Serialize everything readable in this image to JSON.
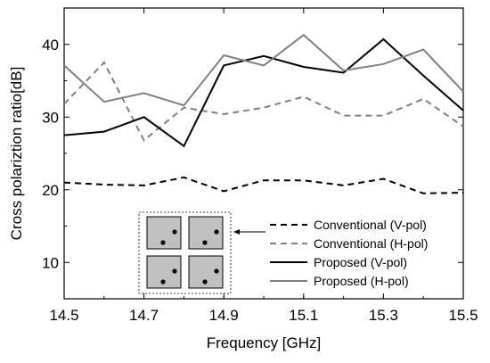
{
  "chart_data": {
    "type": "line",
    "xlabel": "Frequency [GHz]",
    "ylabel": "Cross polariztion ratio[dB]",
    "xlim": [
      14.5,
      15.5
    ],
    "ylim": [
      5,
      45
    ],
    "xticks": [
      14.5,
      14.7,
      14.9,
      15.1,
      15.3,
      15.5
    ],
    "yticks": [
      10,
      20,
      30,
      40
    ],
    "grid": false,
    "legend_position": "bottom-right",
    "x": [
      14.5,
      14.6,
      14.7,
      14.8,
      14.9,
      15.0,
      15.1,
      15.2,
      15.3,
      15.4,
      15.5
    ],
    "series": [
      {
        "name": "Conventional (V-pol)",
        "color": "#000000",
        "dash": true,
        "values": [
          21.0,
          20.7,
          20.6,
          21.7,
          19.8,
          21.3,
          21.3,
          20.6,
          21.5,
          19.5,
          19.6
        ]
      },
      {
        "name": "Conventional (H-pol)",
        "color": "#808080",
        "dash": true,
        "values": [
          31.8,
          37.5,
          26.8,
          31.3,
          30.4,
          31.3,
          32.8,
          30.2,
          30.2,
          32.5,
          28.7
        ]
      },
      {
        "name": "Proposed (V-pol)",
        "color": "#000000",
        "dash": false,
        "values": [
          27.5,
          28.0,
          30.0,
          26.0,
          37.1,
          38.4,
          36.9,
          36.1,
          40.7,
          35.7,
          30.9
        ]
      },
      {
        "name": "Proposed (H-pol)",
        "color": "#808080",
        "dash": false,
        "values": [
          37.1,
          32.1,
          33.3,
          31.6,
          38.5,
          37.1,
          41.3,
          36.4,
          37.3,
          39.3,
          33.5
        ]
      }
    ]
  },
  "inset": {
    "label": "antenna-array-layout-icon",
    "cell_color": "#c0c0c0"
  }
}
